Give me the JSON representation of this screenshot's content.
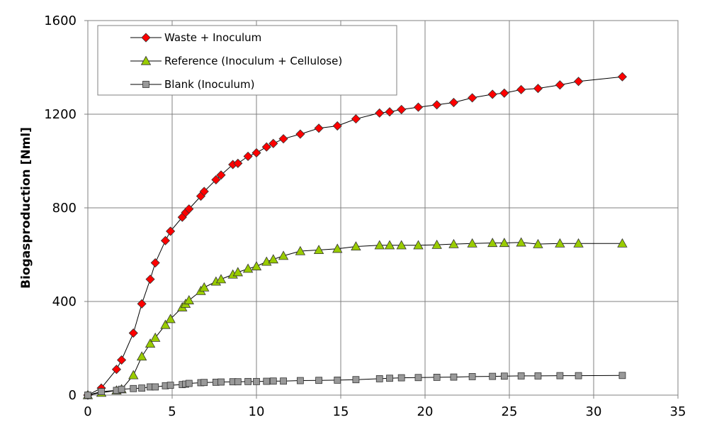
{
  "chart_data": {
    "type": "scatter",
    "title": "",
    "xlabel": "",
    "ylabel": "Biogasproduction [Nml]",
    "xlim": [
      0,
      35
    ],
    "ylim": [
      0,
      1600
    ],
    "x_ticks": [
      "0",
      "5",
      "10",
      "15",
      "20",
      "25",
      "30",
      "35"
    ],
    "y_ticks": [
      "0",
      "400",
      "800",
      "1200",
      "1600"
    ],
    "grid": true,
    "legend_position": "top-left",
    "series": [
      {
        "name": "Waste + Inoculum",
        "marker": "diamond",
        "color": "#ff0000",
        "x": [
          0,
          0.8,
          1.7,
          2.0,
          2.7,
          3.2,
          3.7,
          4.0,
          4.6,
          4.9,
          5.6,
          5.8,
          6.0,
          6.7,
          6.9,
          7.6,
          7.9,
          8.6,
          8.9,
          9.5,
          10.0,
          10.6,
          11.0,
          11.6,
          12.6,
          13.7,
          14.8,
          15.9,
          17.3,
          17.9,
          18.6,
          19.6,
          20.7,
          21.7,
          22.8,
          24.0,
          24.7,
          25.7,
          26.7,
          28.0,
          29.1,
          31.7
        ],
        "y": [
          0,
          30,
          110,
          150,
          265,
          390,
          495,
          565,
          660,
          700,
          760,
          780,
          795,
          850,
          870,
          920,
          940,
          985,
          990,
          1020,
          1035,
          1060,
          1075,
          1095,
          1115,
          1140,
          1150,
          1180,
          1205,
          1210,
          1220,
          1230,
          1240,
          1250,
          1270,
          1285,
          1290,
          1305,
          1310,
          1325,
          1340,
          1360
        ]
      },
      {
        "name": "Reference (Inoculum + Cellulose)",
        "marker": "triangle",
        "color": "#99cc00",
        "x": [
          0,
          0.8,
          1.7,
          2.0,
          2.7,
          3.2,
          3.7,
          4.0,
          4.6,
          4.9,
          5.6,
          5.8,
          6.0,
          6.7,
          6.9,
          7.6,
          7.9,
          8.6,
          8.9,
          9.5,
          10.0,
          10.6,
          11.0,
          11.6,
          12.6,
          13.7,
          14.8,
          15.9,
          17.3,
          17.9,
          18.6,
          19.6,
          20.7,
          21.7,
          22.8,
          24.0,
          24.7,
          25.7,
          26.7,
          28.0,
          29.1,
          31.7
        ],
        "y": [
          0,
          10,
          20,
          25,
          85,
          165,
          220,
          245,
          300,
          325,
          375,
          390,
          405,
          445,
          460,
          485,
          495,
          515,
          525,
          540,
          550,
          570,
          580,
          595,
          615,
          620,
          625,
          635,
          640,
          640,
          640,
          640,
          642,
          645,
          648,
          650,
          650,
          652,
          645,
          648,
          648,
          648
        ]
      },
      {
        "name": "Blank (Inoculum)",
        "marker": "square",
        "color": "#999999",
        "x": [
          0,
          0.8,
          1.7,
          2.0,
          2.7,
          3.2,
          3.7,
          4.0,
          4.6,
          4.9,
          5.6,
          5.8,
          6.0,
          6.7,
          6.9,
          7.6,
          7.9,
          8.6,
          8.9,
          9.5,
          10.0,
          10.6,
          11.0,
          11.6,
          12.6,
          13.7,
          14.8,
          15.9,
          17.3,
          17.9,
          18.6,
          19.6,
          20.7,
          21.7,
          22.8,
          24.0,
          24.7,
          25.7,
          26.7,
          28.0,
          29.1,
          31.7
        ],
        "y": [
          0,
          15,
          20,
          25,
          28,
          30,
          35,
          35,
          40,
          42,
          45,
          47,
          50,
          53,
          54,
          55,
          56,
          57,
          57,
          58,
          58,
          59,
          60,
          60,
          62,
          63,
          64,
          66,
          70,
          72,
          74,
          75,
          76,
          77,
          79,
          80,
          81,
          82,
          82,
          83,
          83,
          84
        ]
      }
    ]
  }
}
